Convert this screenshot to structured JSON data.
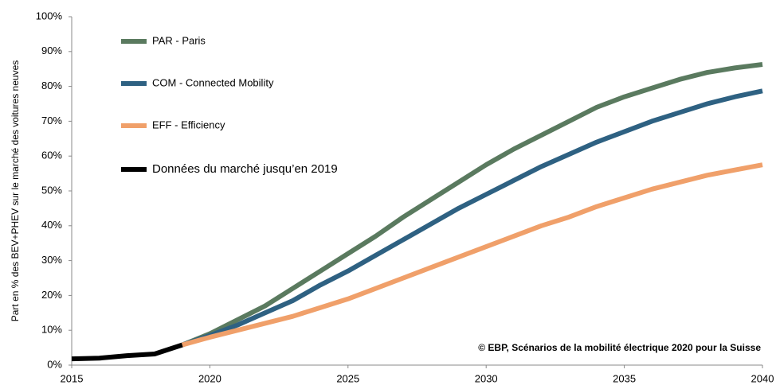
{
  "chart_data": {
    "type": "line",
    "y_label": "Part en % des BEV+PHEV  sur le marché des voitures neuves",
    "annotation": "© EBP, Scénarios de la mobilité électrique 2020 pour la Suisse",
    "x": [
      2015,
      2016,
      2017,
      2018,
      2019,
      2020,
      2021,
      2022,
      2023,
      2024,
      2025,
      2026,
      2027,
      2028,
      2029,
      2030,
      2031,
      2032,
      2033,
      2034,
      2035,
      2036,
      2037,
      2038,
      2039,
      2040
    ],
    "series": [
      {
        "name": "PAR - Paris",
        "color": "#5a7a5f",
        "values": [
          null,
          null,
          null,
          null,
          5.8,
          9,
          13,
          17,
          22,
          27,
          32,
          37,
          42.5,
          47.5,
          52.5,
          57.5,
          62,
          66,
          70,
          74,
          77,
          79.5,
          82,
          84,
          85.3,
          86.3
        ]
      },
      {
        "name": "COM  - Connected Mobility",
        "color": "#2e6182",
        "values": [
          null,
          null,
          null,
          null,
          5.8,
          8.5,
          11.5,
          15,
          18.5,
          23,
          27,
          31.5,
          36,
          40.5,
          45,
          49,
          53,
          57,
          60.5,
          64,
          67,
          70,
          72.5,
          75,
          77,
          78.7
        ]
      },
      {
        "name": "EFF - Efficiency",
        "color": "#f0a06a",
        "values": [
          null,
          null,
          null,
          null,
          5.8,
          8,
          10,
          12,
          14,
          16.5,
          19,
          22,
          25,
          28,
          31,
          34,
          37,
          40,
          42.5,
          45.5,
          48,
          50.5,
          52.5,
          54.5,
          56,
          57.5
        ]
      },
      {
        "name": "Données du marché jusqu’en 2019",
        "color": "#000000",
        "values": [
          1.8,
          2,
          2.7,
          3.2,
          5.8,
          null,
          null,
          null,
          null,
          null,
          null,
          null,
          null,
          null,
          null,
          null,
          null,
          null,
          null,
          null,
          null,
          null,
          null,
          null,
          null,
          null
        ]
      }
    ],
    "xlim": [
      2015,
      2040
    ],
    "xticks": [
      2015,
      2020,
      2025,
      2030,
      2035,
      2040
    ],
    "ylim": [
      0,
      100
    ],
    "yticks": [
      {
        "value": 0,
        "label": "0%"
      },
      {
        "value": 10,
        "label": "10%"
      },
      {
        "value": 20,
        "label": "20%"
      },
      {
        "value": 30,
        "label": "30%"
      },
      {
        "value": 40,
        "label": "40%"
      },
      {
        "value": 50,
        "label": "50%"
      },
      {
        "value": 60,
        "label": "60%"
      },
      {
        "value": 70,
        "label": "70%"
      },
      {
        "value": 80,
        "label": "80%"
      },
      {
        "value": 90,
        "label": "90%"
      },
      {
        "value": 100,
        "label": "100%"
      }
    ],
    "legend": "upper left",
    "grid": false
  }
}
